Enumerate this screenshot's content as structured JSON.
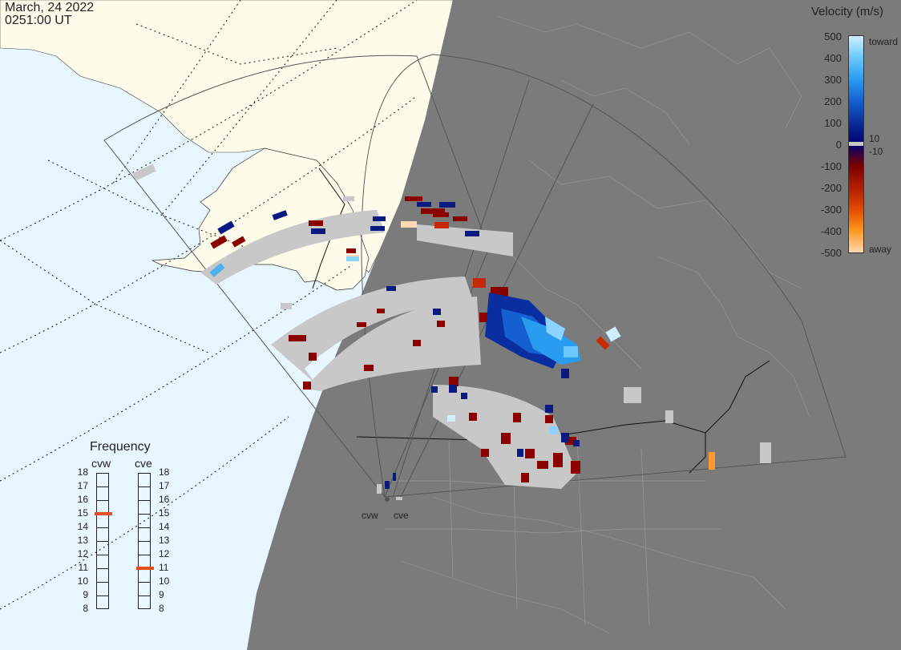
{
  "header": {
    "date": "March, 24 2022",
    "time": "0251:00 UT"
  },
  "colorbar": {
    "title": "Velocity (m/s)",
    "ticks": [
      "500",
      "400",
      "300",
      "200",
      "100",
      "0",
      "-100",
      "-200",
      "-300",
      "-400",
      "-500"
    ],
    "toward_label": "toward",
    "away_label": "away",
    "pos_threshold": "10",
    "neg_threshold": "-10",
    "gradient_colors": [
      "#cfeeff",
      "#6cc8ff",
      "#2a9cf0",
      "#1460d0",
      "#0a2d9a",
      "#000070",
      "#7a0000",
      "#b01e00",
      "#e04a00",
      "#ff9a20",
      "#ffd7b0"
    ]
  },
  "frequency_panel": {
    "title": "Frequency",
    "radars": [
      {
        "name": "cvw",
        "value_mhz": 15
      },
      {
        "name": "cve",
        "value_mhz": 11
      }
    ],
    "scale": [
      "18",
      "17",
      "16",
      "15",
      "14",
      "13",
      "12",
      "11",
      "10",
      "9",
      "8"
    ],
    "indicator_color": "#e05020"
  },
  "sites": [
    {
      "name": "cvw"
    },
    {
      "name": "cve"
    }
  ],
  "map_colors": {
    "ocean_day": "#e8f6ff",
    "land_day": "#fdfbe9",
    "night": "#7b7b7b",
    "ground_scatter": "#c8c8c8",
    "fov_line": "#555555"
  }
}
